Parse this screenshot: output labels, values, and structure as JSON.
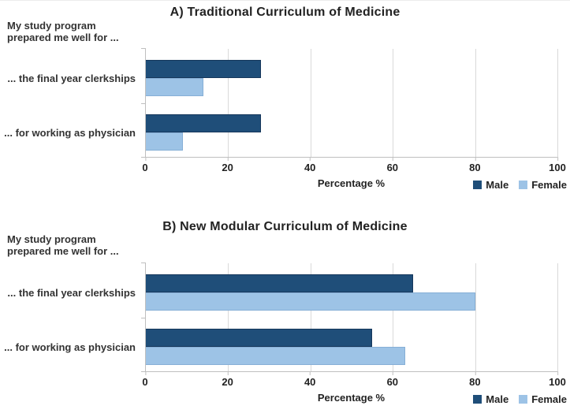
{
  "colors": {
    "male": "#1F4E79",
    "female": "#9DC3E6",
    "grid": "#D9D9D9",
    "axis": "#BFBFBF",
    "text": "#2B2B2B"
  },
  "chart_data": [
    {
      "type": "bar",
      "orientation": "horizontal",
      "title": "A) Traditional Curriculum of Medicine",
      "axis_note_lines": [
        "My study program",
        "prepared me well for ..."
      ],
      "categories": [
        "... the final year clerkships",
        "... for working as physician"
      ],
      "series": [
        {
          "name": "Male",
          "color": "#1F4E79",
          "values": [
            28,
            28
          ]
        },
        {
          "name": "Female",
          "color": "#9DC3E6",
          "values": [
            14,
            9
          ]
        }
      ],
      "xlabel": "Percentage %",
      "xlim": [
        0,
        100
      ],
      "xticks": [
        0,
        20,
        40,
        60,
        80,
        100
      ],
      "grid": true,
      "legend_position": "bottom-right"
    },
    {
      "type": "bar",
      "orientation": "horizontal",
      "title": "B) New Modular Curriculum of Medicine",
      "axis_note_lines": [
        "My study program",
        "prepared me well for ..."
      ],
      "categories": [
        "... the final year clerkships",
        "... for working as physician"
      ],
      "series": [
        {
          "name": "Male",
          "color": "#1F4E79",
          "values": [
            65,
            55
          ]
        },
        {
          "name": "Female",
          "color": "#9DC3E6",
          "values": [
            80,
            63
          ]
        }
      ],
      "xlabel": "Percentage %",
      "xlim": [
        0,
        100
      ],
      "xticks": [
        0,
        20,
        40,
        60,
        80,
        100
      ],
      "grid": true,
      "legend_position": "bottom-right"
    }
  ]
}
